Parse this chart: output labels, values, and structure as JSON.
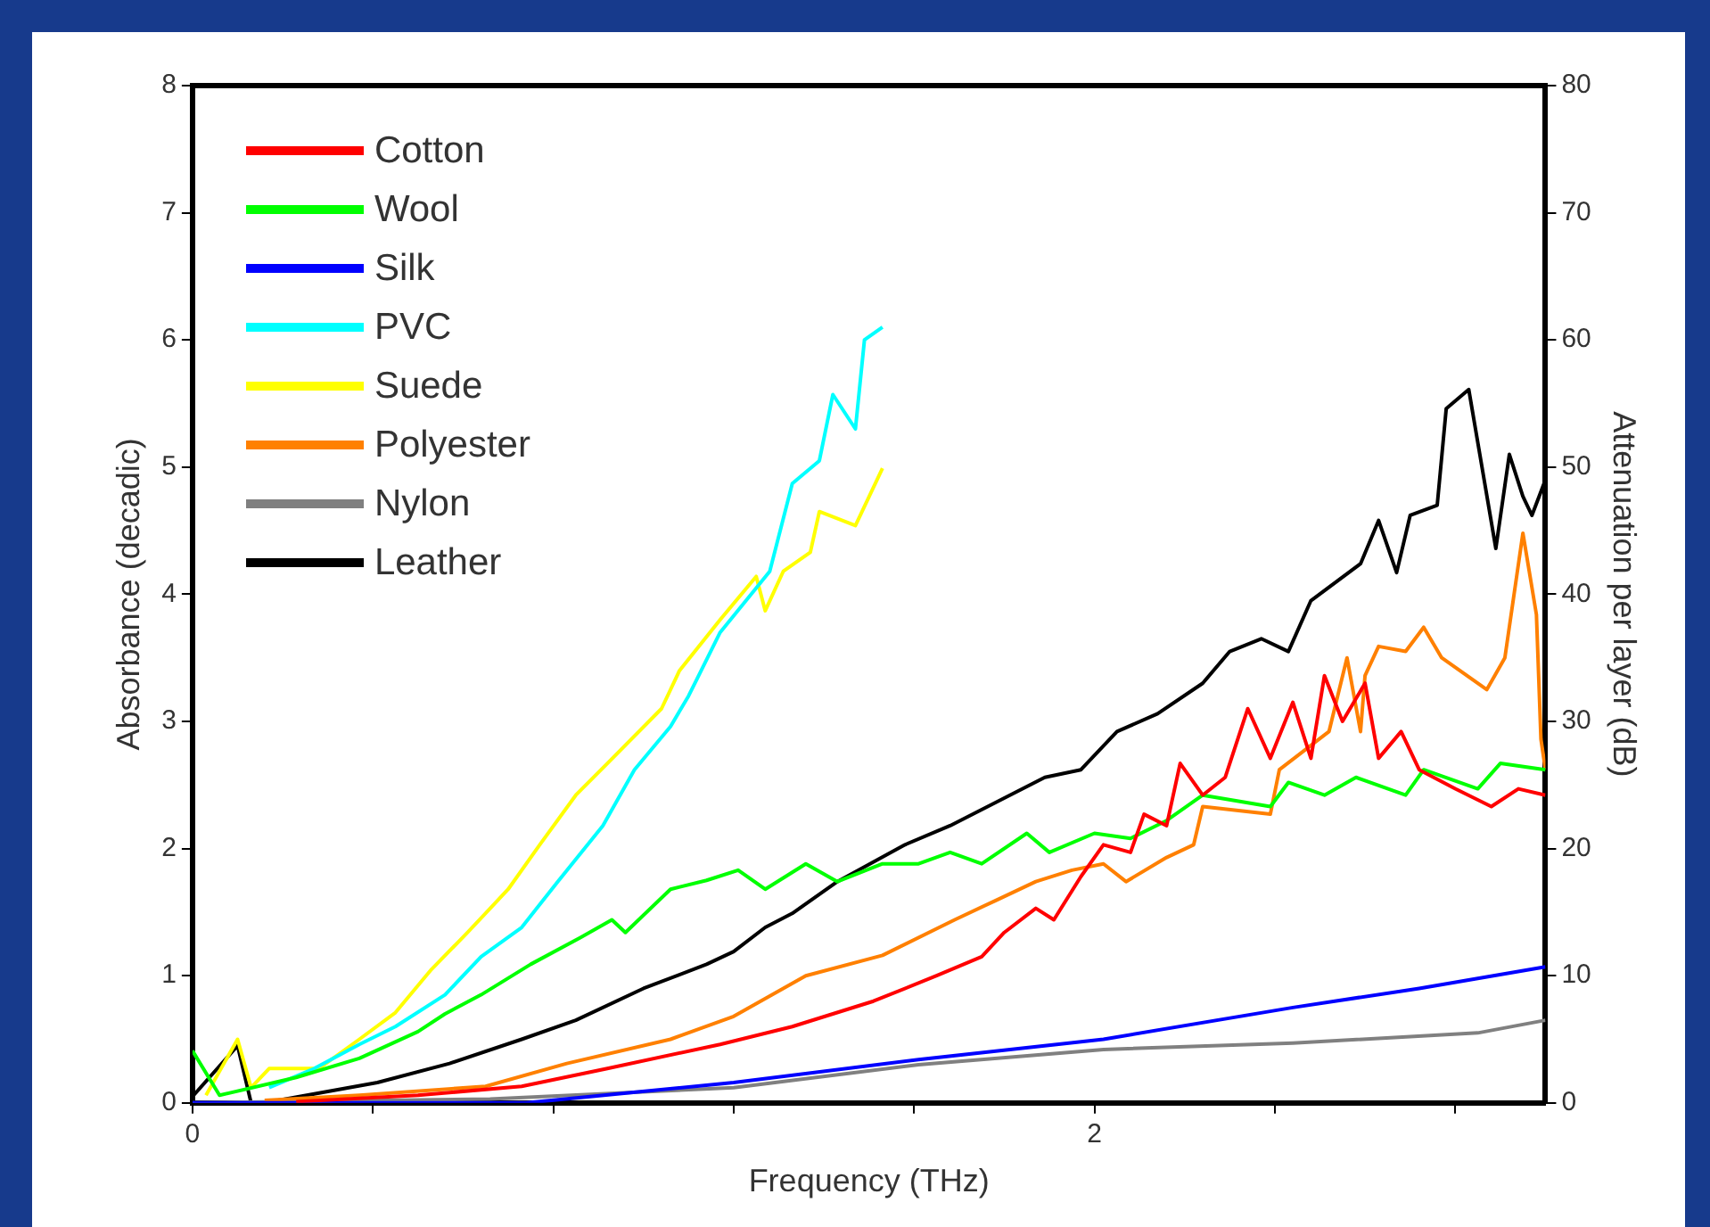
{
  "chart_data": {
    "type": "line",
    "xlabel": "Frequency (THz)",
    "ylabel": "Absorbance (decadic)",
    "y2label": "Attenuation per layer (dB)",
    "xlim": [
      0,
      3
    ],
    "xticks": [
      0,
      {
        "value": 0.4,
        "label": null
      },
      {
        "value": 0.8,
        "label": null
      },
      {
        "value": 1.2,
        "label": null
      },
      {
        "value": 1.6,
        "label": null
      },
      2,
      {
        "value": 2.4,
        "label": null
      },
      {
        "value": 2.8,
        "label": null
      }
    ],
    "ylim": [
      0,
      8
    ],
    "yticks": [
      0,
      1,
      2,
      3,
      4,
      5,
      6,
      7,
      8
    ],
    "y2lim": [
      0,
      80
    ],
    "y2ticks": [
      0,
      10,
      20,
      30,
      40,
      50,
      60,
      70,
      80
    ],
    "grid": false,
    "legend": "top left",
    "marker": "none",
    "line_style": "solid",
    "series": [
      {
        "name": "Cotton",
        "color": "#ff0000",
        "x": [
          0.23,
          0.5,
          0.73,
          0.92,
          1.17,
          1.33,
          1.51,
          1.65,
          1.75,
          1.8,
          1.87,
          1.91,
          1.97,
          2.02,
          2.08,
          2.11,
          2.16,
          2.19,
          2.24,
          2.29,
          2.34,
          2.39,
          2.44,
          2.48,
          2.51,
          2.55,
          2.6,
          2.63,
          2.68,
          2.72,
          2.8,
          2.88,
          2.94,
          3.0
        ],
        "values": [
          0.01,
          0.06,
          0.13,
          0.27,
          0.46,
          0.6,
          0.8,
          1.0,
          1.15,
          1.34,
          1.53,
          1.44,
          1.78,
          2.03,
          1.97,
          2.27,
          2.18,
          2.67,
          2.42,
          2.56,
          3.1,
          2.71,
          3.15,
          2.71,
          3.36,
          3.0,
          3.3,
          2.71,
          2.92,
          2.62,
          2.47,
          2.33,
          2.47,
          2.42
        ]
      },
      {
        "name": "Wool",
        "color": "#00ff00",
        "x": [
          0,
          0.06,
          0.23,
          0.37,
          0.5,
          0.56,
          0.64,
          0.75,
          0.86,
          0.93,
          0.96,
          1.06,
          1.14,
          1.21,
          1.27,
          1.36,
          1.43,
          1.53,
          1.61,
          1.68,
          1.75,
          1.85,
          1.9,
          2.0,
          2.08,
          2.16,
          2.24,
          2.39,
          2.43,
          2.51,
          2.58,
          2.69,
          2.73,
          2.85,
          2.9,
          3.0
        ],
        "values": [
          0.41,
          0.06,
          0.2,
          0.35,
          0.56,
          0.7,
          0.85,
          1.09,
          1.3,
          1.44,
          1.34,
          1.68,
          1.75,
          1.83,
          1.68,
          1.88,
          1.74,
          1.88,
          1.88,
          1.97,
          1.88,
          2.12,
          1.97,
          2.12,
          2.08,
          2.22,
          2.42,
          2.33,
          2.52,
          2.42,
          2.56,
          2.42,
          2.62,
          2.47,
          2.67,
          2.62
        ]
      },
      {
        "name": "Silk",
        "color": "#0000ff",
        "x": [
          0,
          0.74,
          1.2,
          1.61,
          2.02,
          2.44,
          2.72,
          3.0
        ],
        "values": [
          0,
          0,
          0.16,
          0.34,
          0.5,
          0.75,
          0.9,
          1.07
        ]
      },
      {
        "name": "PVC",
        "color": "#00ffff",
        "x": [
          0.17,
          0.27,
          0.37,
          0.45,
          0.56,
          0.64,
          0.73,
          0.81,
          0.91,
          0.98,
          1.06,
          1.1,
          1.17,
          1.28,
          1.33,
          1.39,
          1.42,
          1.47,
          1.49,
          1.53
        ],
        "values": [
          0.12,
          0.27,
          0.46,
          0.6,
          0.85,
          1.15,
          1.38,
          1.74,
          2.18,
          2.62,
          2.96,
          3.2,
          3.7,
          4.18,
          4.87,
          5.05,
          5.57,
          5.3,
          6.0,
          6.1
        ]
      },
      {
        "name": "Suede",
        "color": "#ffff00",
        "x": [
          0.03,
          0.1,
          0.13,
          0.17,
          0.28,
          0.37,
          0.45,
          0.53,
          0.61,
          0.7,
          0.77,
          0.85,
          0.92,
          1.04,
          1.08,
          1.17,
          1.25,
          1.27,
          1.31,
          1.37,
          1.39,
          1.47,
          1.53
        ],
        "values": [
          0.06,
          0.5,
          0.12,
          0.27,
          0.27,
          0.5,
          0.71,
          1.05,
          1.34,
          1.68,
          2.03,
          2.42,
          2.67,
          3.1,
          3.4,
          3.8,
          4.14,
          3.87,
          4.18,
          4.33,
          4.65,
          4.54,
          4.99
        ]
      },
      {
        "name": "Polyester",
        "color": "#ff8000",
        "x": [
          0.16,
          0.37,
          0.65,
          0.83,
          1.06,
          1.2,
          1.36,
          1.53,
          1.69,
          1.78,
          1.87,
          1.95,
          2.02,
          2.07,
          2.16,
          2.22,
          2.24,
          2.39,
          2.41,
          2.52,
          2.56,
          2.59,
          2.6,
          2.63,
          2.69,
          2.73,
          2.77,
          2.87,
          2.91,
          2.95,
          2.98,
          2.99,
          3.0
        ],
        "values": [
          0.02,
          0.06,
          0.13,
          0.31,
          0.5,
          0.68,
          1.0,
          1.16,
          1.44,
          1.59,
          1.74,
          1.83,
          1.88,
          1.74,
          1.93,
          2.03,
          2.33,
          2.27,
          2.62,
          2.92,
          3.5,
          2.92,
          3.36,
          3.59,
          3.55,
          3.74,
          3.5,
          3.25,
          3.5,
          4.48,
          3.84,
          2.86,
          2.62
        ]
      },
      {
        "name": "Nylon",
        "color": "#808080",
        "x": [
          0,
          0.66,
          1.2,
          1.61,
          2.02,
          2.44,
          2.85,
          3.0
        ],
        "values": [
          0,
          0.03,
          0.12,
          0.3,
          0.42,
          0.47,
          0.55,
          0.65
        ]
      },
      {
        "name": "Leather",
        "color": "#000000",
        "x": [
          0,
          0.1,
          0.13,
          0.16,
          0.41,
          0.57,
          0.73,
          0.85,
          1.0,
          1.14,
          1.2,
          1.27,
          1.33,
          1.43,
          1.58,
          1.68,
          1.89,
          1.97,
          2.05,
          2.14,
          2.24,
          2.3,
          2.37,
          2.43,
          2.48,
          2.59,
          2.63,
          2.67,
          2.7,
          2.76,
          2.78,
          2.83,
          2.89,
          2.92,
          2.95,
          2.97,
          3.0
        ],
        "values": [
          0.05,
          0.45,
          0,
          0,
          0.16,
          0.31,
          0.5,
          0.65,
          0.9,
          1.09,
          1.19,
          1.38,
          1.49,
          1.74,
          2.03,
          2.18,
          2.56,
          2.62,
          2.92,
          3.06,
          3.3,
          3.55,
          3.65,
          3.55,
          3.95,
          4.24,
          4.58,
          4.17,
          4.62,
          4.7,
          5.46,
          5.61,
          4.36,
          5.1,
          4.77,
          4.62,
          4.9
        ]
      }
    ]
  }
}
